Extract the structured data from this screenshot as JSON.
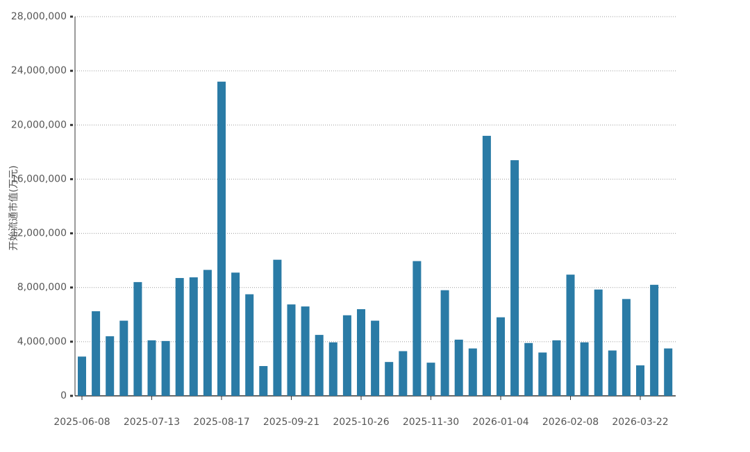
{
  "chart_data": {
    "type": "bar",
    "y_label": "开始流通市值(万元)",
    "categories": [
      "2025-06-08",
      null,
      null,
      null,
      null,
      "2025-07-13",
      null,
      null,
      null,
      null,
      "2025-08-17",
      null,
      null,
      null,
      null,
      "2025-09-21",
      null,
      null,
      null,
      null,
      "2025-10-26",
      null,
      null,
      null,
      null,
      "2025-11-30",
      null,
      null,
      null,
      null,
      "2026-01-04",
      null,
      null,
      null,
      null,
      "2026-02-08",
      null,
      null,
      null,
      null,
      "2026-03-22",
      null,
      null
    ],
    "values": [
      2900000,
      6250000,
      4400000,
      5550000,
      8400000,
      4100000,
      4050000,
      8700000,
      8750000,
      9300000,
      23200000,
      9100000,
      7500000,
      2200000,
      10050000,
      6750000,
      6600000,
      4500000,
      3950000,
      5950000,
      6400000,
      5550000,
      2500000,
      3300000,
      9950000,
      2450000,
      7800000,
      4150000,
      3500000,
      19200000,
      5800000,
      17400000,
      3900000,
      3200000,
      4100000,
      8950000,
      3950000,
      7850000,
      3350000,
      7150000,
      2250000,
      8200000,
      3500000
    ],
    "color": "#2a7ba6",
    "ylim": [
      0,
      28000000
    ],
    "yticks": [
      {
        "value": 0,
        "label": "0"
      },
      {
        "value": 4000000,
        "label": "4,000,000"
      },
      {
        "value": 8000000,
        "label": "8,000,000"
      },
      {
        "value": 12000000,
        "label": "12,000,000"
      },
      {
        "value": 16000000,
        "label": "16,000,000"
      },
      {
        "value": 20000000,
        "label": "20,000,000"
      },
      {
        "value": 24000000,
        "label": "24,000,000"
      },
      {
        "value": 28000000,
        "label": "28,000,000"
      }
    ],
    "grid": true
  }
}
